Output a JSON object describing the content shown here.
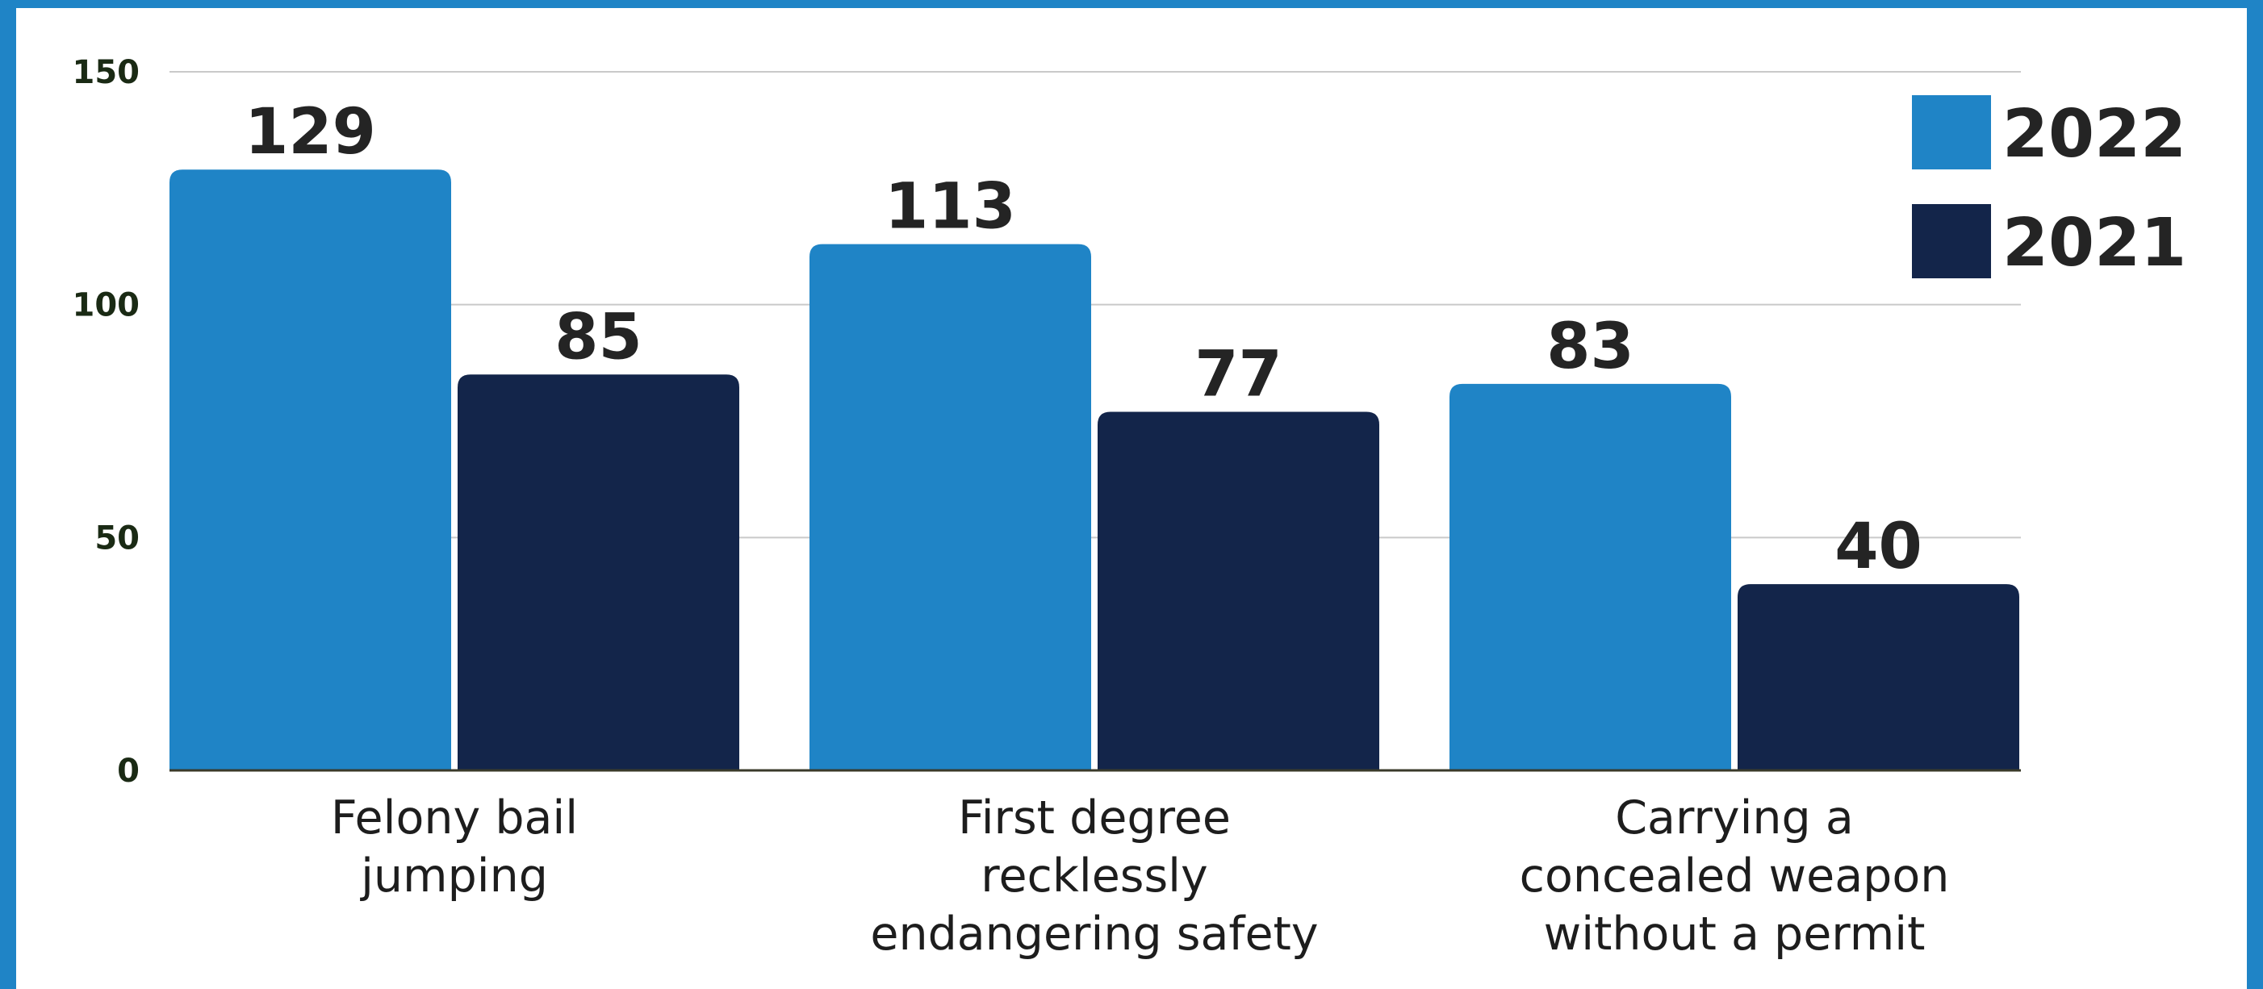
{
  "chart_data": {
    "type": "bar",
    "categories": [
      [
        "Felony bail",
        "jumping"
      ],
      [
        "First degree",
        "recklessly",
        "endangering safety"
      ],
      [
        "Carrying a",
        "concealed weapon",
        "without a permit"
      ]
    ],
    "series": [
      {
        "name": "2022",
        "color": "#1f84c6",
        "values": [
          129,
          113,
          83
        ]
      },
      {
        "name": "2021",
        "color": "#13254a",
        "values": [
          85,
          77,
          40
        ]
      }
    ],
    "yticks": [
      0,
      50,
      100,
      150
    ],
    "ylim": [
      0,
      150
    ],
    "grid": true,
    "legend": "top-right",
    "title": "",
    "xlabel": "",
    "ylabel": ""
  }
}
